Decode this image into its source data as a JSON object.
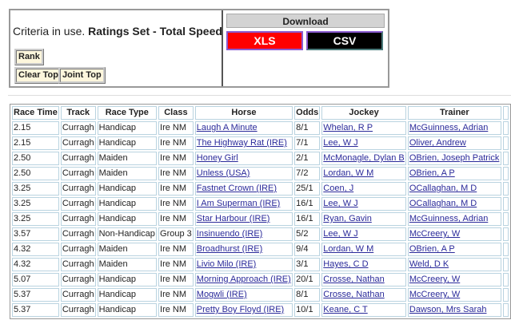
{
  "criteria": {
    "prefix": "Criteria in use.",
    "value": "Ratings Set - Total Speed"
  },
  "buttons": {
    "rank": "Rank",
    "clear_top": "Clear Top",
    "joint_top": "Joint Top"
  },
  "download": {
    "title": "Download",
    "xls": "XLS",
    "csv": "CSV",
    "xls_color": "#ff0000",
    "csv_color": "#000000"
  },
  "table": {
    "headers": [
      "Race Time",
      "Track",
      "Race Type",
      "Class",
      "Horse",
      "Odds",
      "Jockey",
      "Trainer",
      ""
    ],
    "rows": [
      [
        "2.15",
        "Curragh",
        "Handicap",
        "Ire NM",
        "Laugh A Minute",
        "8/1",
        "Whelan, R P",
        "McGuinness, Adrian"
      ],
      [
        "2.15",
        "Curragh",
        "Handicap",
        "Ire NM",
        "The Highway Rat (IRE)",
        "7/1",
        "Lee, W J",
        "Oliver, Andrew"
      ],
      [
        "2.50",
        "Curragh",
        "Maiden",
        "Ire NM",
        "Honey Girl",
        "2/1",
        "McMonagle, Dylan B",
        "OBrien, Joseph Patrick"
      ],
      [
        "2.50",
        "Curragh",
        "Maiden",
        "Ire NM",
        "Unless (USA)",
        "7/2",
        "Lordan, W M",
        "OBrien, A P"
      ],
      [
        "3.25",
        "Curragh",
        "Handicap",
        "Ire NM",
        "Fastnet Crown (IRE)",
        "25/1",
        "Coen, J",
        "OCallaghan, M D"
      ],
      [
        "3.25",
        "Curragh",
        "Handicap",
        "Ire NM",
        "I Am Superman (IRE)",
        "16/1",
        "Lee, W J",
        "OCallaghan, M D"
      ],
      [
        "3.25",
        "Curragh",
        "Handicap",
        "Ire NM",
        "Star Harbour (IRE)",
        "16/1",
        "Ryan, Gavin",
        "McGuinness, Adrian"
      ],
      [
        "3.57",
        "Curragh",
        "Non-Handicap",
        "Group 3",
        "Insinuendo (IRE)",
        "5/2",
        "Lee, W J",
        "McCreery, W"
      ],
      [
        "4.32",
        "Curragh",
        "Maiden",
        "Ire NM",
        "Broadhurst (IRE)",
        "9/4",
        "Lordan, W M",
        "OBrien, A P"
      ],
      [
        "4.32",
        "Curragh",
        "Maiden",
        "Ire NM",
        "Livio Milo (IRE)",
        "3/1",
        "Hayes, C D",
        "Weld, D K"
      ],
      [
        "5.07",
        "Curragh",
        "Handicap",
        "Ire NM",
        "Morning Approach (IRE)",
        "20/1",
        "Crosse, Nathan",
        "McCreery, W"
      ],
      [
        "5.37",
        "Curragh",
        "Handicap",
        "Ire NM",
        "Mogwli (IRE)",
        "8/1",
        "Crosse, Nathan",
        "McCreery, W"
      ],
      [
        "5.37",
        "Curragh",
        "Handicap",
        "Ire NM",
        "Pretty Boy Floyd (IRE)",
        "10/1",
        "Keane, C T",
        "Dawson, Mrs Sarah"
      ]
    ]
  }
}
